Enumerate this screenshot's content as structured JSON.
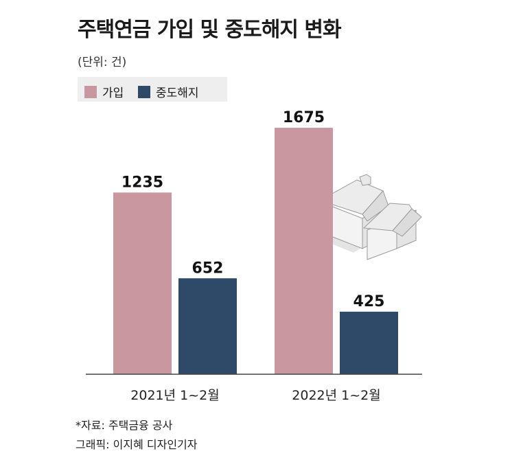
{
  "header": {
    "title": "주택연금 가입 및 중도해지 변화",
    "unit": "(단위: 건)"
  },
  "legend": [
    {
      "label": "가입",
      "color": "#c8979f"
    },
    {
      "label": "중도해지",
      "color": "#2e4a68"
    }
  ],
  "chart_data": {
    "type": "bar",
    "categories": [
      "2021년 1~2월",
      "2022년 1~2월"
    ],
    "series": [
      {
        "name": "가입",
        "values": [
          1235,
          1675
        ],
        "color": "#c8979f"
      },
      {
        "name": "중도해지",
        "values": [
          652,
          425
        ],
        "color": "#2e4a68"
      }
    ],
    "title": "주택연금 가입 및 중도해지 변화",
    "xlabel": "",
    "ylabel": "",
    "ylim": [
      0,
      1750
    ],
    "grid": false,
    "legend_position": "top-left"
  },
  "footer": {
    "source": "*자료: 주택금융 공사",
    "credit": "그래픽: 이지혜 디자인기자"
  }
}
